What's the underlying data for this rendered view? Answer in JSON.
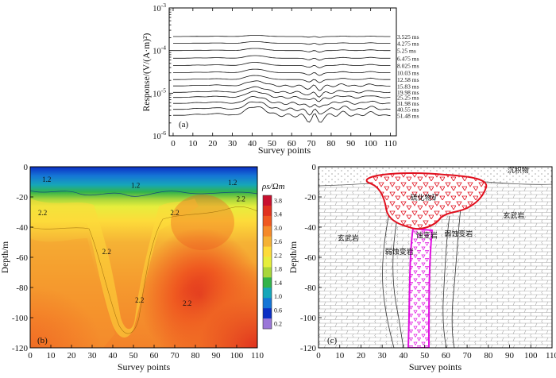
{
  "chart_data": [
    {
      "type": "line",
      "panel_label": "(a)",
      "xlabel": "Survey points",
      "ylabel": "Response/(V/(A·m)²)",
      "xlim": [
        -2,
        113
      ],
      "x_ticks": [
        0,
        10,
        20,
        30,
        40,
        50,
        60,
        70,
        80,
        90,
        100,
        110
      ],
      "ylim_log10": [
        -6,
        -3
      ],
      "y_ticks": [
        {
          "exp": -3,
          "base": "10",
          "sup": "-3"
        },
        {
          "exp": -4,
          "base": "10",
          "sup": "-4"
        },
        {
          "exp": -5,
          "base": "10",
          "sup": "-5"
        },
        {
          "exp": -6,
          "base": "10",
          "sup": "-6"
        }
      ],
      "series": [
        {
          "name": "3.525 ms",
          "level": -3.67,
          "amp": 0.025
        },
        {
          "name": "4.275 ms",
          "level": -3.83,
          "amp": 0.035
        },
        {
          "name": "5.25 ms",
          "level": -4.0,
          "amp": 0.045
        },
        {
          "name": "6.475 ms",
          "level": -4.18,
          "amp": 0.055
        },
        {
          "name": "8.025 ms",
          "level": -4.35,
          "amp": 0.065
        },
        {
          "name": "10.03 ms",
          "level": -4.52,
          "amp": 0.075
        },
        {
          "name": "12.58 ms",
          "level": -4.68,
          "amp": 0.085
        },
        {
          "name": "15.83 ms",
          "level": -4.83,
          "amp": 0.1
        },
        {
          "name": "19.98 ms",
          "level": -4.98,
          "amp": 0.11
        },
        {
          "name": "25.25 ms",
          "level": -5.1,
          "amp": 0.12
        },
        {
          "name": "31.98 ms",
          "level": -5.24,
          "amp": 0.14
        },
        {
          "name": "40.55 ms",
          "level": -5.38,
          "amp": 0.16
        },
        {
          "name": "51.48 ms",
          "level": -5.52,
          "amp": 0.18
        }
      ]
    },
    {
      "type": "heatmap",
      "panel_label": "(b)",
      "xlabel": "Survey points",
      "ylabel": "Depth/m",
      "xlim": [
        0,
        110
      ],
      "ylim": [
        -120,
        0
      ],
      "x_ticks": [
        0,
        10,
        20,
        30,
        40,
        50,
        60,
        70,
        80,
        90,
        100,
        110
      ],
      "y_ticks": [
        0,
        -20,
        -40,
        -60,
        -80,
        -100,
        -120
      ],
      "colorbar": {
        "title": "ρs/Ωm",
        "values": [
          3.8,
          3.4,
          3.0,
          2.6,
          2.2,
          1.8,
          1.4,
          1.0,
          0.6,
          0.2
        ],
        "labels": [
          "3.8",
          "3.4",
          "3.0",
          "2.6",
          "2.2",
          "1.8",
          "1.4",
          "1.0",
          "0.6",
          "0.2"
        ],
        "colors": [
          "#c8102e",
          "#e0311e",
          "#ef5820",
          "#f58a2a",
          "#f5b235",
          "#fddb3a",
          "#e6ee3c",
          "#a8d63b",
          "#32b34a",
          "#16a6b9",
          "#1575d6",
          "#0b2fc4",
          "#9a77d8"
        ]
      },
      "contour_labels": [
        {
          "text": "1.2",
          "x": 8,
          "y": -10
        },
        {
          "text": "1.2",
          "x": 51,
          "y": -14
        },
        {
          "text": "1.2",
          "x": 98,
          "y": -12
        },
        {
          "text": "2.2",
          "x": 102,
          "y": -23
        },
        {
          "text": "2.2",
          "x": 6,
          "y": -32
        },
        {
          "text": "2.2",
          "x": 70,
          "y": -32
        },
        {
          "text": "2.2",
          "x": 37,
          "y": -58
        },
        {
          "text": "2.2",
          "x": 53,
          "y": -90
        },
        {
          "text": "2.2",
          "x": 76,
          "y": -92
        }
      ]
    },
    {
      "type": "diagram",
      "panel_label": "(c)",
      "xlabel": "Survey points",
      "ylabel": "Depth/m",
      "xlim": [
        0,
        110
      ],
      "ylim": [
        -120,
        0
      ],
      "x_ticks": [
        0,
        10,
        20,
        30,
        40,
        50,
        60,
        70,
        80,
        90,
        100,
        110
      ],
      "y_ticks": [
        0,
        -20,
        -40,
        -60,
        -80,
        -100,
        -120
      ],
      "unit_labels": [
        {
          "text": "沉积物",
          "x": 94,
          "y": -4
        },
        {
          "text": "硫化物矿",
          "x": 50,
          "y": -22
        },
        {
          "text": "玄武岩",
          "x": 92,
          "y": -34
        },
        {
          "text": "玄武岩",
          "x": 14,
          "y": -49
        },
        {
          "text": "蚀变岩",
          "x": 51,
          "y": -47
        },
        {
          "text": "弱蚀变岩",
          "x": 66,
          "y": -46
        },
        {
          "text": "弱蚀变岩",
          "x": 38,
          "y": -58
        }
      ]
    }
  ]
}
